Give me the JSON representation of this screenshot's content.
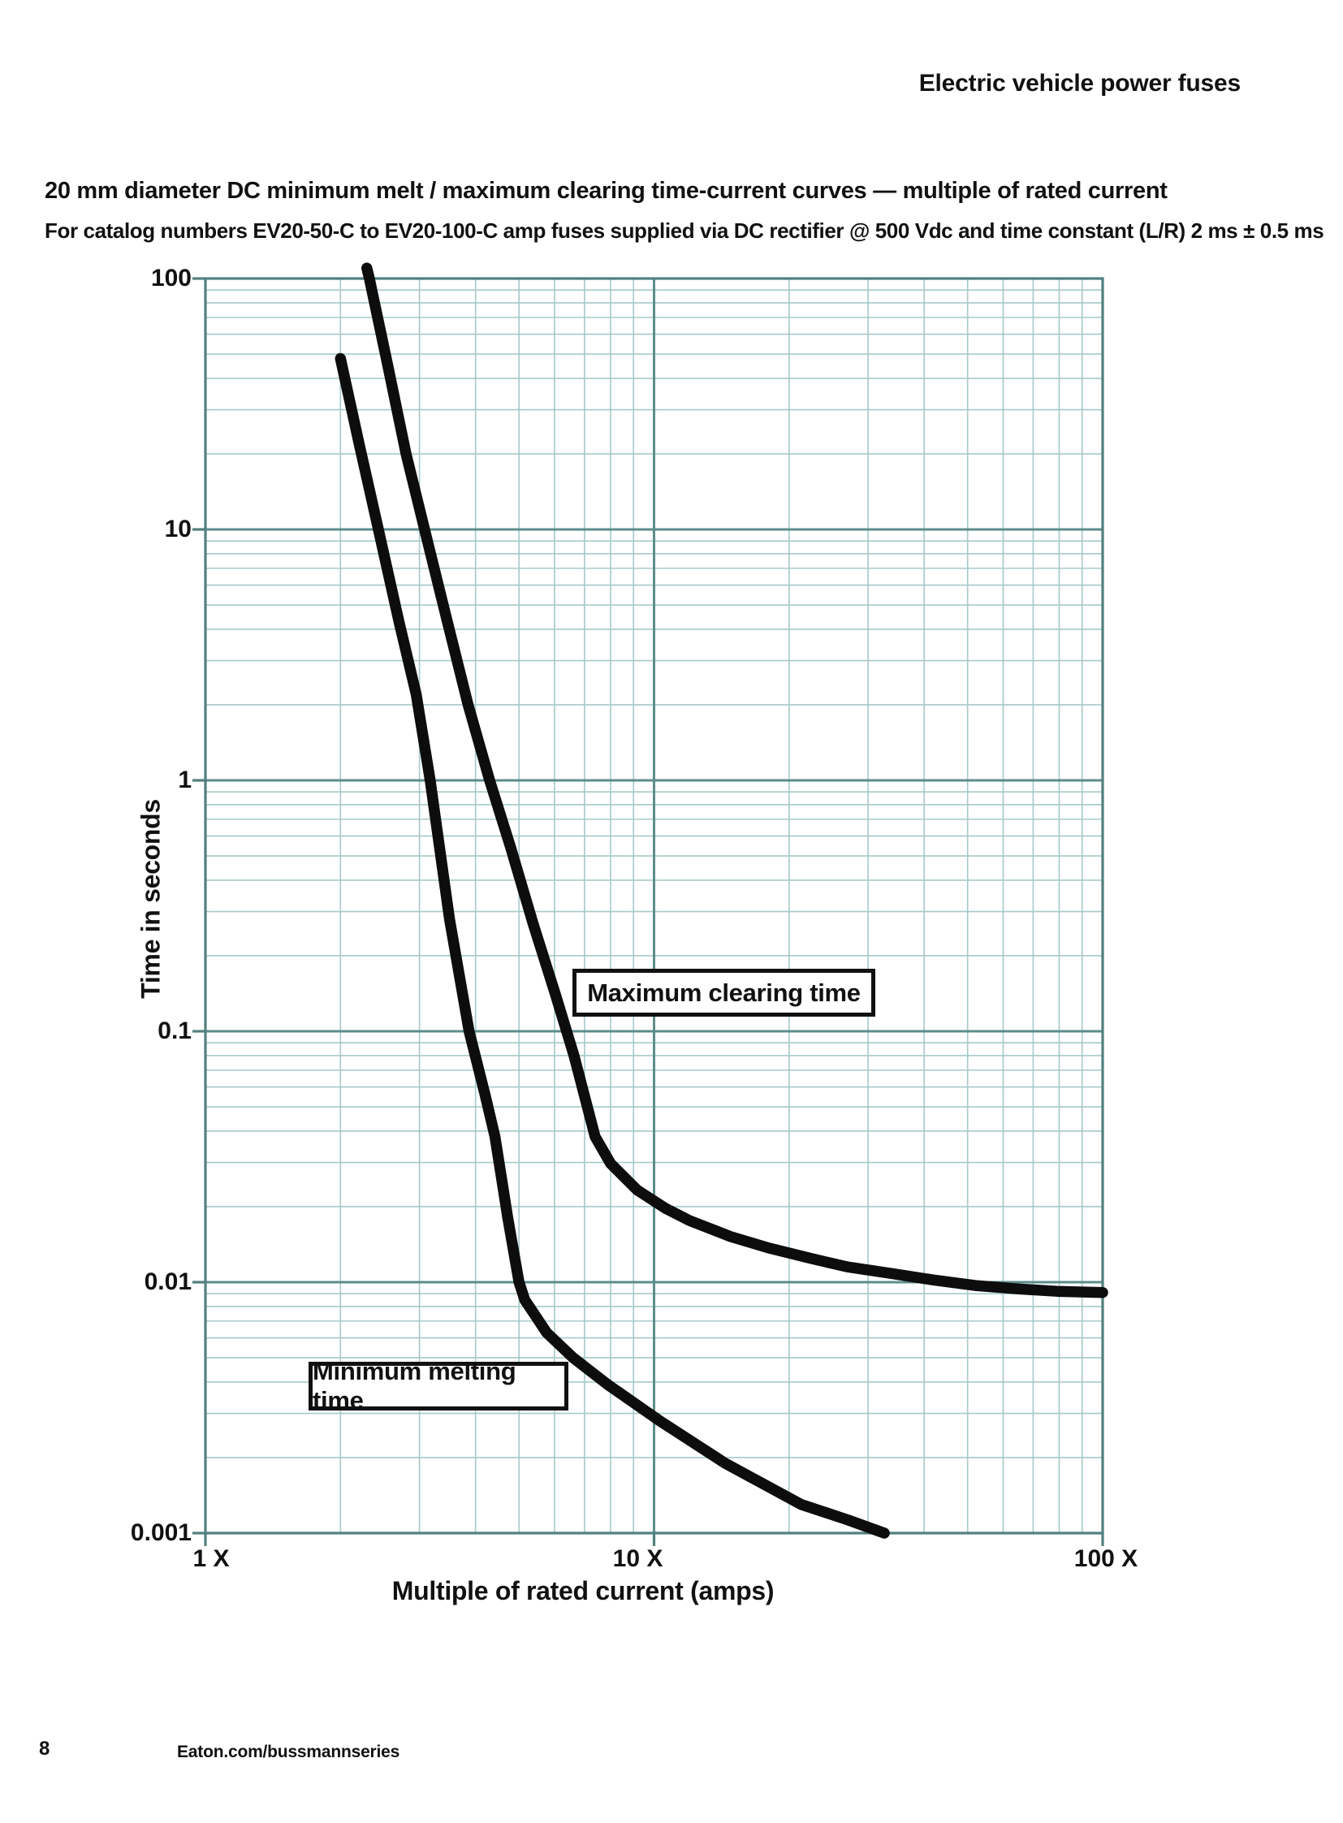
{
  "page": {
    "header": "Electric vehicle power fuses",
    "title": "20 mm diameter DC minimum melt / maximum clearing time-current curves — multiple of rated current",
    "subtitle": "For catalog numbers EV20-50-C to EV20-100-C amp fuses supplied via DC rectifier @ 500 Vdc and time constant (L/R) 2 ms ± 0.5 ms",
    "footer": {
      "page_number": "8",
      "website": "Eaton.com/bussmannseries"
    }
  },
  "chart_data": {
    "type": "line",
    "x_scale": "log",
    "y_scale": "log",
    "xlabel": "Multiple of rated current (amps)",
    "ylabel": "Time in seconds",
    "xlim": [
      1,
      100
    ],
    "ylim": [
      0.001,
      100
    ],
    "x_ticks": [
      {
        "value": 1,
        "label": "1 X"
      },
      {
        "value": 10,
        "label": "10 X"
      },
      {
        "value": 100,
        "label": "100 X"
      }
    ],
    "y_ticks": [
      {
        "value": 100,
        "label": "100"
      },
      {
        "value": 10,
        "label": "10"
      },
      {
        "value": 1,
        "label": "1"
      },
      {
        "value": 0.1,
        "label": "0.1"
      },
      {
        "value": 0.01,
        "label": "0.01"
      },
      {
        "value": 0.001,
        "label": "0.001"
      }
    ],
    "grid": {
      "major_color": "#5d8c8c",
      "minor_color": "#a6c9c9",
      "border_color": "#527f7f",
      "background": "#ffffff"
    },
    "curve_color": "#0d0d0d",
    "series": [
      {
        "name": "Maximum clearing time",
        "points": [
          [
            2.29,
            110
          ],
          [
            2.32,
            100
          ],
          [
            2.55,
            45
          ],
          [
            2.8,
            20
          ],
          [
            3.08,
            10
          ],
          [
            3.45,
            4.4
          ],
          [
            3.85,
            2.0
          ],
          [
            4.3,
            1.0
          ],
          [
            4.79,
            0.54
          ],
          [
            5.37,
            0.27
          ],
          [
            6.03,
            0.14
          ],
          [
            6.63,
            0.08
          ],
          [
            7.39,
            0.038
          ],
          [
            8.0,
            0.0297
          ],
          [
            9.17,
            0.0233
          ],
          [
            10.6,
            0.0197
          ],
          [
            12.0,
            0.0176
          ],
          [
            14.8,
            0.0152
          ],
          [
            18,
            0.0137
          ],
          [
            22.5,
            0.0124
          ],
          [
            27,
            0.0115
          ],
          [
            34.2,
            0.0108
          ],
          [
            42,
            0.0102
          ],
          [
            52,
            0.0097
          ],
          [
            65,
            0.0094
          ],
          [
            79,
            0.0092
          ],
          [
            100,
            0.0091
          ]
        ]
      },
      {
        "name": "Minimum melting time",
        "points": [
          [
            2.0,
            48
          ],
          [
            2.2,
            22
          ],
          [
            2.43,
            10
          ],
          [
            2.7,
            4.3
          ],
          [
            2.95,
            2.2
          ],
          [
            3.17,
            1.0
          ],
          [
            3.5,
            0.28
          ],
          [
            3.87,
            0.1
          ],
          [
            4.2,
            0.056
          ],
          [
            4.42,
            0.038
          ],
          [
            4.72,
            0.018
          ],
          [
            5.0,
            0.01
          ],
          [
            5.15,
            0.0085
          ],
          [
            5.4,
            0.0075
          ],
          [
            5.76,
            0.0063
          ],
          [
            6.6,
            0.005
          ],
          [
            7.9,
            0.0039
          ],
          [
            10.3,
            0.0028
          ],
          [
            14.4,
            0.0019
          ],
          [
            21.3,
            0.0013
          ],
          [
            27,
            0.00113
          ],
          [
            32.6,
            0.001
          ]
        ]
      }
    ]
  }
}
